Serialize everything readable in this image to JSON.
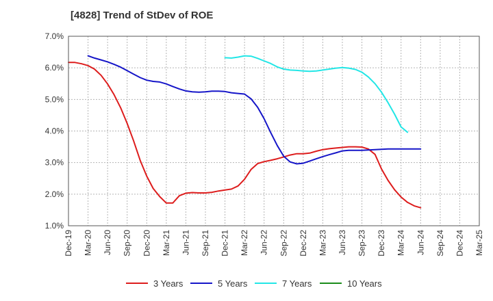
{
  "chart_data": {
    "type": "line",
    "title": "[4828]  Trend of StDev of ROE",
    "xlabel": "",
    "ylabel": "",
    "ylim": [
      1.0,
      7.0
    ],
    "yticks": [
      1.0,
      2.0,
      3.0,
      4.0,
      5.0,
      6.0,
      7.0
    ],
    "ytick_labels": [
      "1.0%",
      "2.0%",
      "3.0%",
      "4.0%",
      "5.0%",
      "6.0%",
      "7.0%"
    ],
    "x_categories": [
      "Dec-19",
      "Mar-20",
      "Jun-20",
      "Sep-20",
      "Dec-20",
      "Mar-21",
      "Jun-21",
      "Sep-21",
      "Dec-21",
      "Mar-22",
      "Jun-22",
      "Sep-22",
      "Dec-22",
      "Mar-23",
      "Jun-23",
      "Sep-23",
      "Dec-23",
      "Mar-24",
      "Jun-24",
      "Sep-24",
      "Dec-24",
      "Mar-25"
    ],
    "grid": true,
    "legend_position": "bottom",
    "series": [
      {
        "name": "3 Years",
        "color": "#dd1c1c",
        "points": [
          [
            0,
            6.17
          ],
          [
            0.33,
            6.17
          ],
          [
            0.67,
            6.13
          ],
          [
            1,
            6.07
          ],
          [
            1.33,
            5.96
          ],
          [
            1.67,
            5.76
          ],
          [
            2,
            5.49
          ],
          [
            2.33,
            5.15
          ],
          [
            2.67,
            4.73
          ],
          [
            3,
            4.24
          ],
          [
            3.33,
            3.69
          ],
          [
            3.67,
            3.06
          ],
          [
            4,
            2.57
          ],
          [
            4.33,
            2.18
          ],
          [
            4.67,
            1.92
          ],
          [
            5,
            1.72
          ],
          [
            5.33,
            1.72
          ],
          [
            5.67,
            1.95
          ],
          [
            6,
            2.03
          ],
          [
            6.33,
            2.05
          ],
          [
            6.67,
            2.04
          ],
          [
            7,
            2.04
          ],
          [
            7.33,
            2.06
          ],
          [
            7.67,
            2.1
          ],
          [
            8,
            2.13
          ],
          [
            8.33,
            2.16
          ],
          [
            8.67,
            2.26
          ],
          [
            9,
            2.47
          ],
          [
            9.33,
            2.78
          ],
          [
            9.67,
            2.97
          ],
          [
            10,
            3.03
          ],
          [
            10.33,
            3.07
          ],
          [
            10.67,
            3.12
          ],
          [
            11,
            3.18
          ],
          [
            11.33,
            3.24
          ],
          [
            11.67,
            3.28
          ],
          [
            12,
            3.28
          ],
          [
            12.33,
            3.3
          ],
          [
            12.67,
            3.36
          ],
          [
            13,
            3.41
          ],
          [
            13.33,
            3.44
          ],
          [
            13.67,
            3.46
          ],
          [
            14,
            3.48
          ],
          [
            14.33,
            3.5
          ],
          [
            14.67,
            3.5
          ],
          [
            15,
            3.49
          ],
          [
            15.33,
            3.43
          ],
          [
            15.67,
            3.26
          ],
          [
            16,
            2.8
          ],
          [
            16.33,
            2.44
          ],
          [
            16.67,
            2.14
          ],
          [
            17,
            1.91
          ],
          [
            17.33,
            1.74
          ],
          [
            17.67,
            1.63
          ],
          [
            18,
            1.57
          ]
        ]
      },
      {
        "name": "5 Years",
        "color": "#1515c8",
        "points": [
          [
            1,
            6.38
          ],
          [
            1.33,
            6.31
          ],
          [
            1.67,
            6.25
          ],
          [
            2,
            6.19
          ],
          [
            2.33,
            6.11
          ],
          [
            2.67,
            6.02
          ],
          [
            3,
            5.91
          ],
          [
            3.33,
            5.8
          ],
          [
            3.67,
            5.69
          ],
          [
            4,
            5.61
          ],
          [
            4.33,
            5.57
          ],
          [
            4.67,
            5.55
          ],
          [
            5,
            5.49
          ],
          [
            5.33,
            5.41
          ],
          [
            5.67,
            5.33
          ],
          [
            6,
            5.27
          ],
          [
            6.33,
            5.24
          ],
          [
            6.67,
            5.23
          ],
          [
            7,
            5.24
          ],
          [
            7.33,
            5.26
          ],
          [
            7.67,
            5.26
          ],
          [
            8,
            5.25
          ],
          [
            8.33,
            5.21
          ],
          [
            8.67,
            5.19
          ],
          [
            9,
            5.17
          ],
          [
            9.33,
            5.02
          ],
          [
            9.67,
            4.75
          ],
          [
            10,
            4.39
          ],
          [
            10.33,
            3.96
          ],
          [
            10.67,
            3.54
          ],
          [
            11,
            3.2
          ],
          [
            11.33,
            3.02
          ],
          [
            11.67,
            2.96
          ],
          [
            12,
            2.98
          ],
          [
            12.33,
            3.05
          ],
          [
            12.67,
            3.12
          ],
          [
            13,
            3.19
          ],
          [
            13.33,
            3.25
          ],
          [
            13.67,
            3.31
          ],
          [
            14,
            3.37
          ],
          [
            14.33,
            3.39
          ],
          [
            14.67,
            3.39
          ],
          [
            15,
            3.39
          ],
          [
            15.33,
            3.4
          ],
          [
            15.67,
            3.41
          ],
          [
            16,
            3.42
          ],
          [
            16.33,
            3.43
          ],
          [
            16.67,
            3.43
          ],
          [
            17,
            3.43
          ],
          [
            17.33,
            3.43
          ],
          [
            17.67,
            3.43
          ],
          [
            18,
            3.43
          ]
        ]
      },
      {
        "name": "7 Years",
        "color": "#22e6e6",
        "points": [
          [
            8,
            6.32
          ],
          [
            8.33,
            6.31
          ],
          [
            8.67,
            6.34
          ],
          [
            9,
            6.38
          ],
          [
            9.33,
            6.37
          ],
          [
            9.67,
            6.3
          ],
          [
            10,
            6.22
          ],
          [
            10.33,
            6.14
          ],
          [
            10.67,
            6.03
          ],
          [
            11,
            5.96
          ],
          [
            11.33,
            5.93
          ],
          [
            11.67,
            5.92
          ],
          [
            12,
            5.9
          ],
          [
            12.33,
            5.89
          ],
          [
            12.67,
            5.9
          ],
          [
            13,
            5.93
          ],
          [
            13.33,
            5.96
          ],
          [
            13.67,
            5.99
          ],
          [
            14,
            6.01
          ],
          [
            14.33,
            5.99
          ],
          [
            14.67,
            5.95
          ],
          [
            15,
            5.86
          ],
          [
            15.33,
            5.71
          ],
          [
            15.67,
            5.5
          ],
          [
            16,
            5.23
          ],
          [
            16.33,
            4.9
          ],
          [
            16.67,
            4.53
          ],
          [
            17,
            4.13
          ],
          [
            17.33,
            3.96
          ]
        ]
      },
      {
        "name": "10 Years",
        "color": "#1a8c1a",
        "points": []
      }
    ]
  }
}
